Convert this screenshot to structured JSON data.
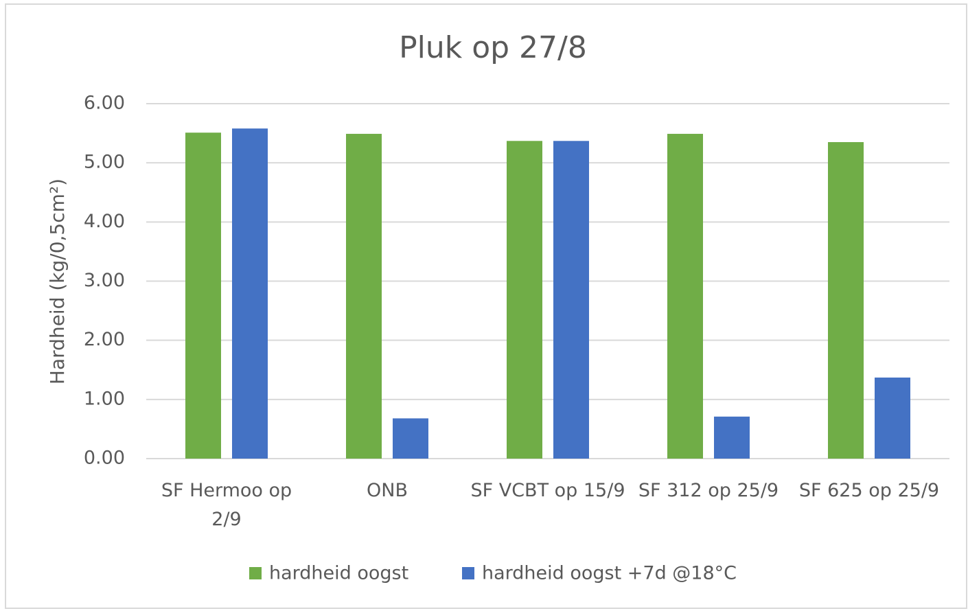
{
  "chart_data": {
    "type": "bar",
    "title": "Pluk op 27/8",
    "y_label": "Hardheid (kg/0,5cm²)",
    "categories": [
      "SF Hermoo op 2/9",
      "ONB",
      "SF VCBT op 15/9",
      "SF 312 op 25/9",
      "SF 625 op 25/9"
    ],
    "series": [
      {
        "name": "hardheid oogst",
        "color": "#70ad47",
        "values": [
          5.51,
          5.49,
          5.37,
          5.49,
          5.35
        ]
      },
      {
        "name": "hardheid oogst +7d @18°C",
        "color": "#4472c4",
        "values": [
          5.58,
          0.68,
          5.37,
          0.71,
          1.37
        ]
      }
    ],
    "ylim": [
      0,
      6
    ],
    "yticks": [
      {
        "value": 0,
        "label": "0.00"
      },
      {
        "value": 1,
        "label": "1.00"
      },
      {
        "value": 2,
        "label": "2.00"
      },
      {
        "value": 3,
        "label": "3.00"
      },
      {
        "value": 4,
        "label": "4.00"
      },
      {
        "value": 5,
        "label": "5.00"
      },
      {
        "value": 6,
        "label": "6.00"
      }
    ],
    "grid": true,
    "legend": "bottom"
  }
}
